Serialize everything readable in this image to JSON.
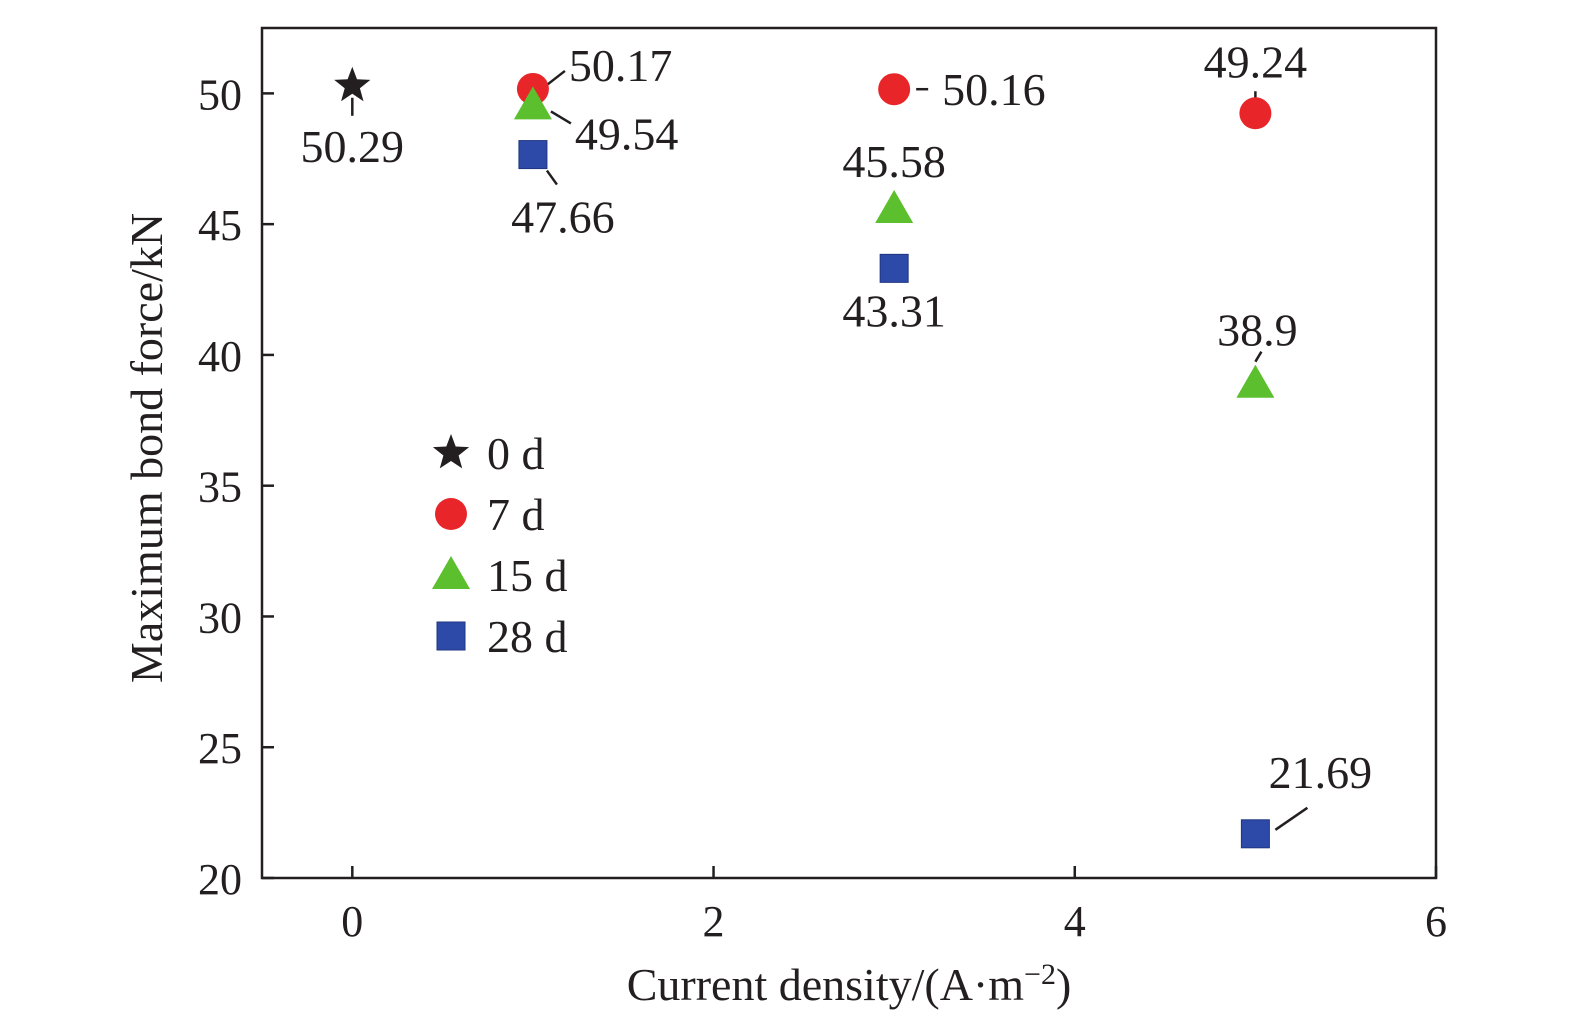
{
  "chart_data": {
    "type": "scatter",
    "xlabel": "Current density/(A·m",
    "xlabel_sup": "−2",
    "xlabel_tail": ")",
    "ylabel": "Maximum bond force/kN",
    "xlim": [
      -0.5,
      6
    ],
    "ylim": [
      20,
      52.5
    ],
    "x_ticks": [
      0,
      2,
      4,
      6
    ],
    "y_ticks": [
      20,
      25,
      30,
      35,
      40,
      45,
      50
    ],
    "grid": false,
    "legend_position": "center-left",
    "series": [
      {
        "name": "0 d",
        "marker": "star",
        "color": "#231f20",
        "points": [
          {
            "x": 0,
            "y": 50.29,
            "label": "50.29"
          }
        ]
      },
      {
        "name": "7 d",
        "marker": "circle",
        "color": "#e8262a",
        "points": [
          {
            "x": 1,
            "y": 50.17,
            "label": "50.17"
          },
          {
            "x": 3,
            "y": 50.16,
            "label": "50.16"
          },
          {
            "x": 5,
            "y": 49.24,
            "label": "49.24"
          }
        ]
      },
      {
        "name": "15 d",
        "marker": "triangle",
        "color": "#5cbf2e",
        "points": [
          {
            "x": 1,
            "y": 49.54,
            "label": "49.54"
          },
          {
            "x": 3,
            "y": 45.58,
            "label": "45.58"
          },
          {
            "x": 5,
            "y": 38.9,
            "label": "38.9"
          }
        ]
      },
      {
        "name": "28 d",
        "marker": "square",
        "color": "#2e4aa8",
        "points": [
          {
            "x": 1,
            "y": 47.66,
            "label": "47.66"
          },
          {
            "x": 3,
            "y": 43.31,
            "label": "43.31"
          },
          {
            "x": 5,
            "y": 21.69,
            "label": "21.69"
          }
        ]
      }
    ]
  }
}
